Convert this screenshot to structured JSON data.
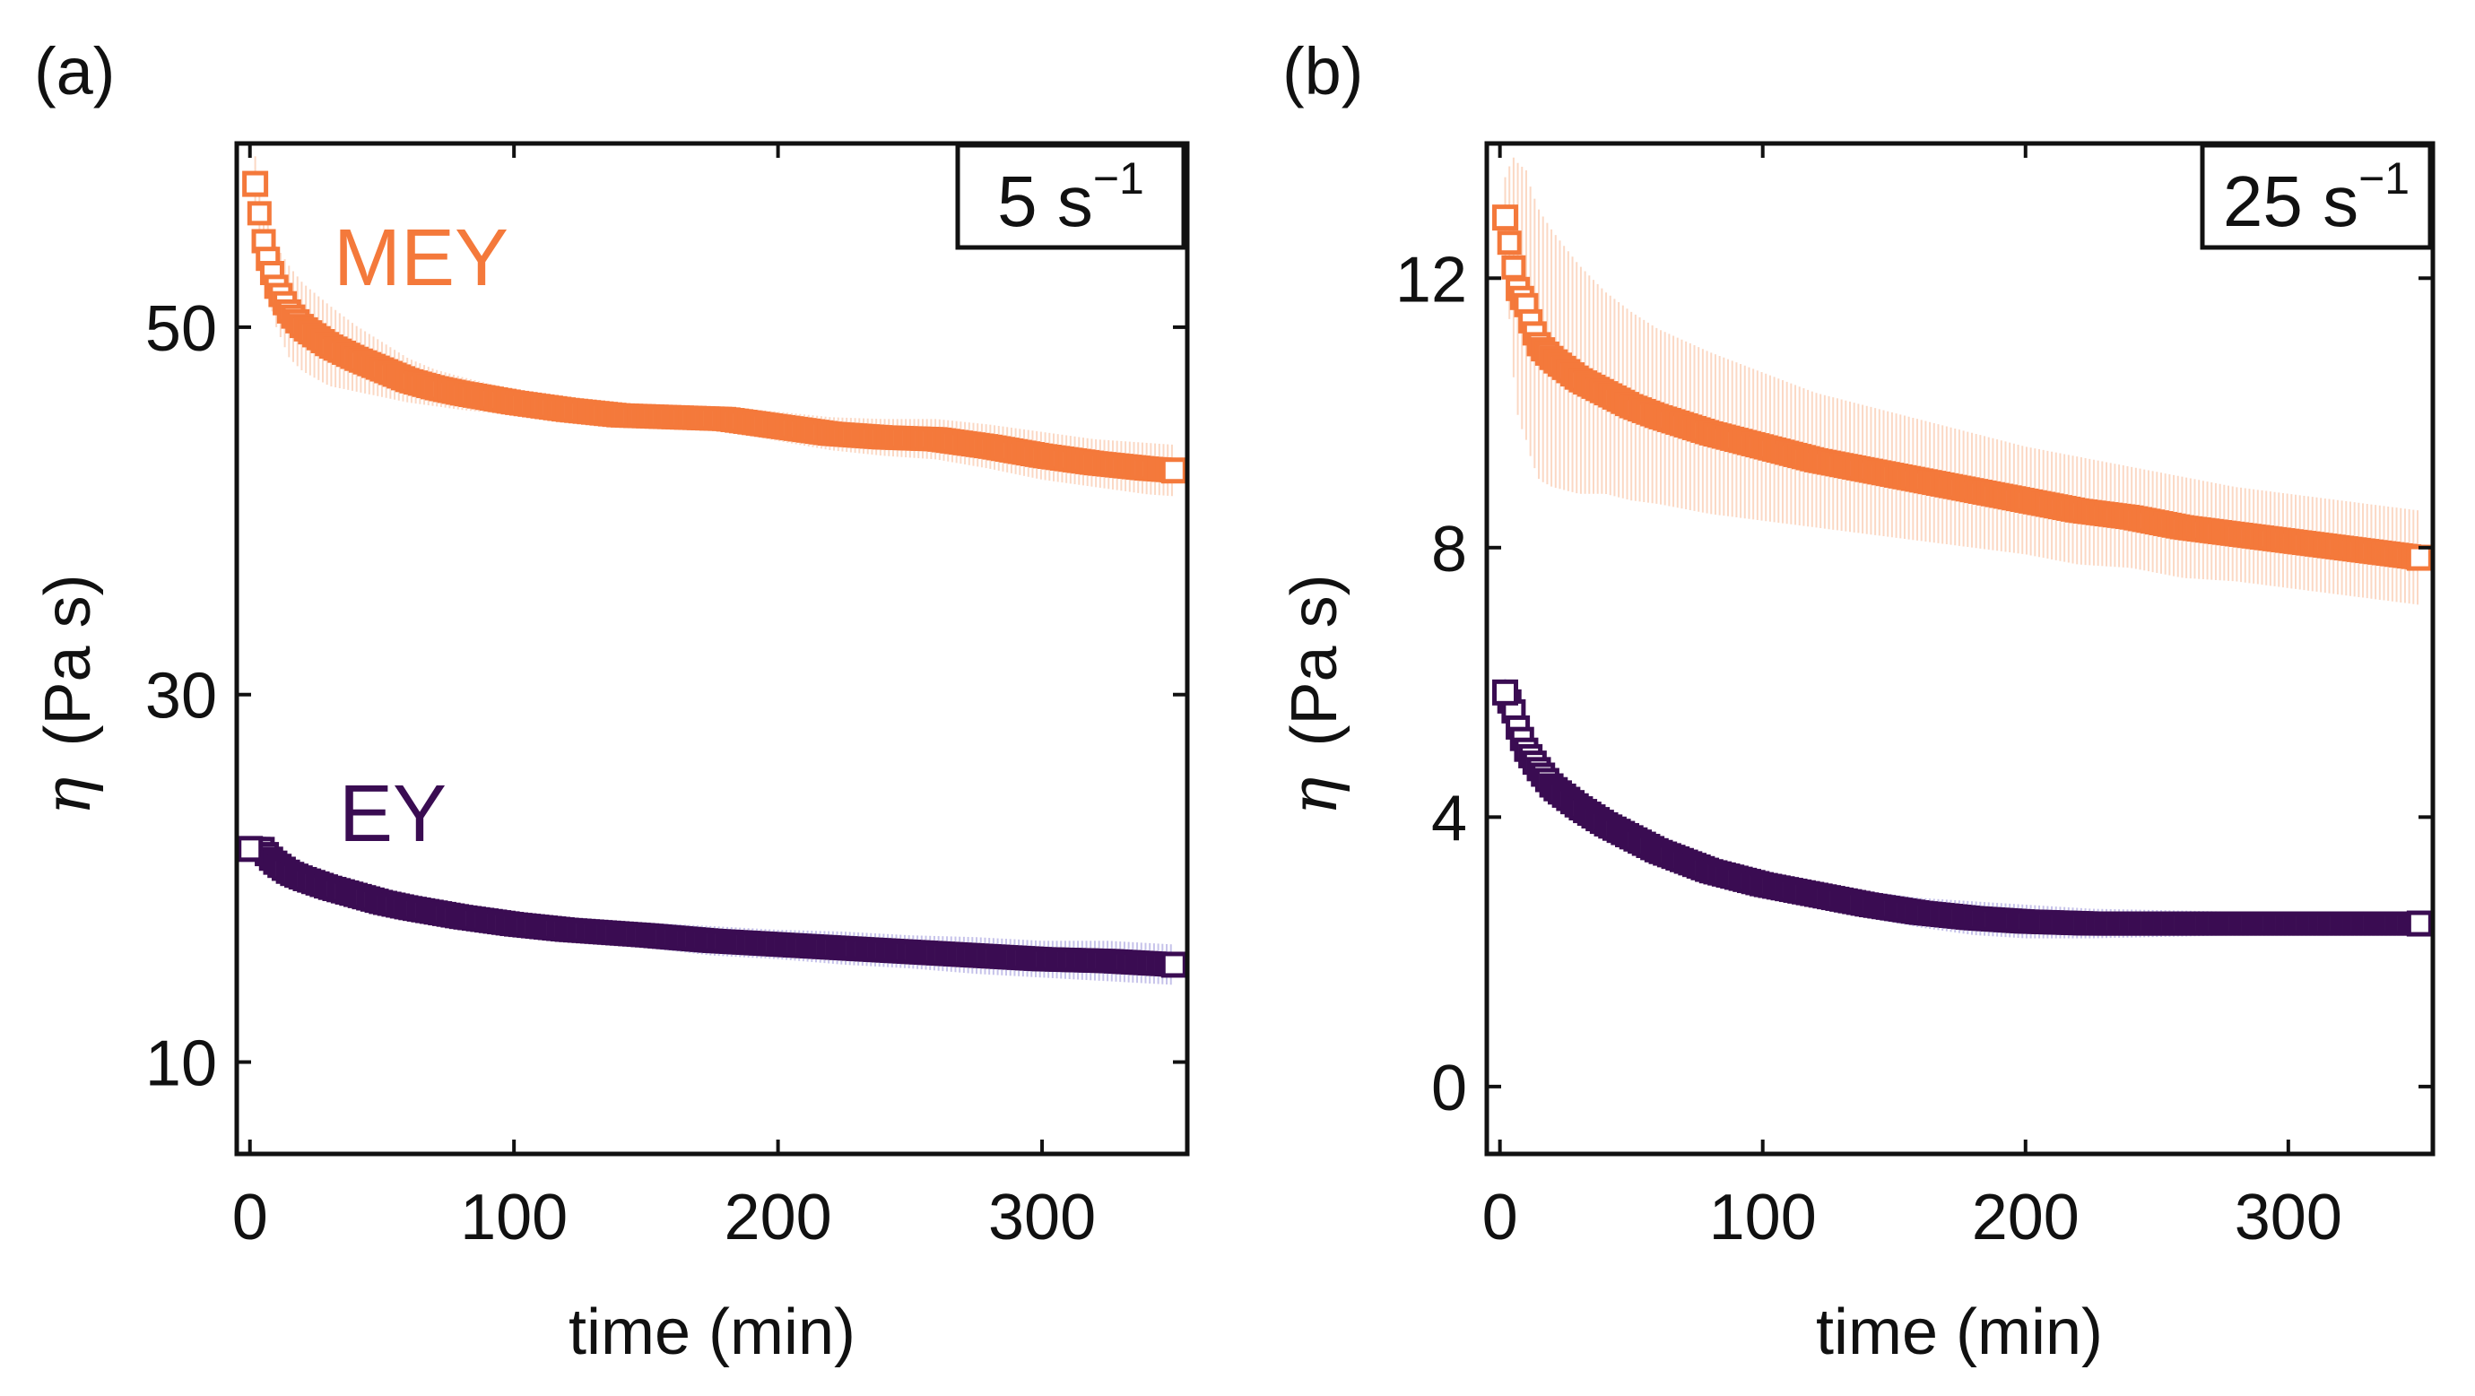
{
  "chart_data": [
    {
      "type": "scatter",
      "panel_label": "(a)",
      "shear_rate": {
        "value": "5 s",
        "exponent": "−1"
      },
      "xlabel": "time (min)",
      "ylabel_symbol": "η",
      "ylabel_unit": "(Pa s)",
      "xlim": [
        -5,
        355
      ],
      "ylim": [
        5,
        60
      ],
      "xticks": [
        0,
        100,
        200,
        300
      ],
      "yticks": [
        10,
        30,
        50
      ],
      "series": [
        {
          "name": "MEY",
          "color": "#f4793b",
          "error_color": "#fbd8c4",
          "x": [
            2,
            5,
            7,
            10,
            15,
            20,
            30,
            40,
            50,
            60,
            70,
            80,
            100,
            120,
            140,
            160,
            180,
            200,
            220,
            240,
            260,
            280,
            300,
            320,
            340,
            350
          ],
          "y": [
            57.8,
            54.8,
            53.6,
            52.2,
            50.8,
            50.0,
            49.0,
            48.3,
            47.7,
            47.1,
            46.7,
            46.4,
            45.9,
            45.5,
            45.2,
            45.1,
            45.0,
            44.6,
            44.2,
            44.0,
            43.9,
            43.5,
            43.0,
            42.6,
            42.3,
            42.2
          ],
          "err": [
            1.5,
            1.8,
            2.0,
            2.2,
            2.5,
            2.4,
            2.2,
            1.8,
            1.5,
            1.2,
            1.0,
            0.9,
            0.7,
            0.6,
            0.6,
            0.6,
            0.7,
            0.8,
            0.9,
            1.0,
            1.1,
            1.2,
            1.3,
            1.3,
            1.4,
            1.4
          ]
        },
        {
          "name": "EY",
          "color": "#3a0c52",
          "error_color": "#c6c2ea",
          "x": [
            0,
            2,
            5,
            7,
            10,
            15,
            20,
            30,
            40,
            50,
            60,
            80,
            100,
            120,
            150,
            175,
            200,
            225,
            250,
            275,
            300,
            325,
            350
          ],
          "y": [
            21.6,
            21.6,
            21.6,
            21.2,
            20.8,
            20.3,
            20.0,
            19.5,
            19.1,
            18.7,
            18.4,
            17.9,
            17.5,
            17.2,
            16.9,
            16.6,
            16.4,
            16.2,
            16.0,
            15.8,
            15.6,
            15.5,
            15.3
          ],
          "err": [
            0.5,
            0.5,
            0.5,
            0.5,
            0.5,
            0.4,
            0.4,
            0.4,
            0.4,
            0.4,
            0.5,
            0.5,
            0.6,
            0.6,
            0.7,
            0.8,
            0.8,
            0.9,
            0.9,
            1.0,
            1.0,
            1.1,
            1.1
          ]
        }
      ]
    },
    {
      "type": "scatter",
      "panel_label": "(b)",
      "shear_rate": {
        "value": "25 s",
        "exponent": "−1"
      },
      "xlabel": "time (min)",
      "ylabel_symbol": "η",
      "ylabel_unit": "(Pa s)",
      "xlim": [
        -5,
        355
      ],
      "ylim": [
        -1,
        14
      ],
      "xticks": [
        0,
        100,
        200,
        300
      ],
      "yticks": [
        0,
        4,
        8,
        12
      ],
      "series": [
        {
          "name": "MEY",
          "color": "#f4793b",
          "error_color": "#fbd8c4",
          "x": [
            2,
            5,
            7,
            10,
            12,
            15,
            20,
            30,
            40,
            50,
            60,
            80,
            100,
            120,
            140,
            160,
            180,
            200,
            220,
            240,
            260,
            280,
            300,
            320,
            340,
            350
          ],
          "y": [
            12.9,
            12.2,
            11.8,
            11.6,
            11.3,
            11.0,
            10.8,
            10.5,
            10.3,
            10.1,
            9.95,
            9.7,
            9.5,
            9.3,
            9.15,
            9.0,
            8.85,
            8.7,
            8.55,
            8.45,
            8.3,
            8.2,
            8.1,
            8.0,
            7.9,
            7.85
          ],
          "err": [
            0.6,
            1.6,
            1.9,
            2.0,
            2.0,
            2.0,
            1.9,
            1.7,
            1.5,
            1.4,
            1.3,
            1.2,
            1.1,
            1.0,
            0.95,
            0.9,
            0.85,
            0.8,
            0.8,
            0.75,
            0.75,
            0.7,
            0.7,
            0.7,
            0.7,
            0.7
          ]
        },
        {
          "name": "EY",
          "color": "#3a0c52",
          "error_color": "#c6c2ea",
          "x": [
            2,
            5,
            7,
            10,
            15,
            20,
            30,
            40,
            50,
            60,
            80,
            100,
            120,
            140,
            160,
            180,
            200,
            225,
            250,
            275,
            300,
            325,
            350
          ],
          "y": [
            5.85,
            5.6,
            5.3,
            5.0,
            4.7,
            4.45,
            4.15,
            3.9,
            3.7,
            3.5,
            3.2,
            3.0,
            2.85,
            2.7,
            2.58,
            2.5,
            2.45,
            2.42,
            2.42,
            2.42,
            2.42,
            2.42,
            2.42
          ],
          "err": [
            0.2,
            0.2,
            0.2,
            0.2,
            0.2,
            0.2,
            0.2,
            0.2,
            0.2,
            0.2,
            0.2,
            0.2,
            0.2,
            0.2,
            0.22,
            0.25,
            0.25,
            0.22,
            0.2,
            0.18,
            0.16,
            0.15,
            0.15
          ]
        }
      ]
    }
  ]
}
